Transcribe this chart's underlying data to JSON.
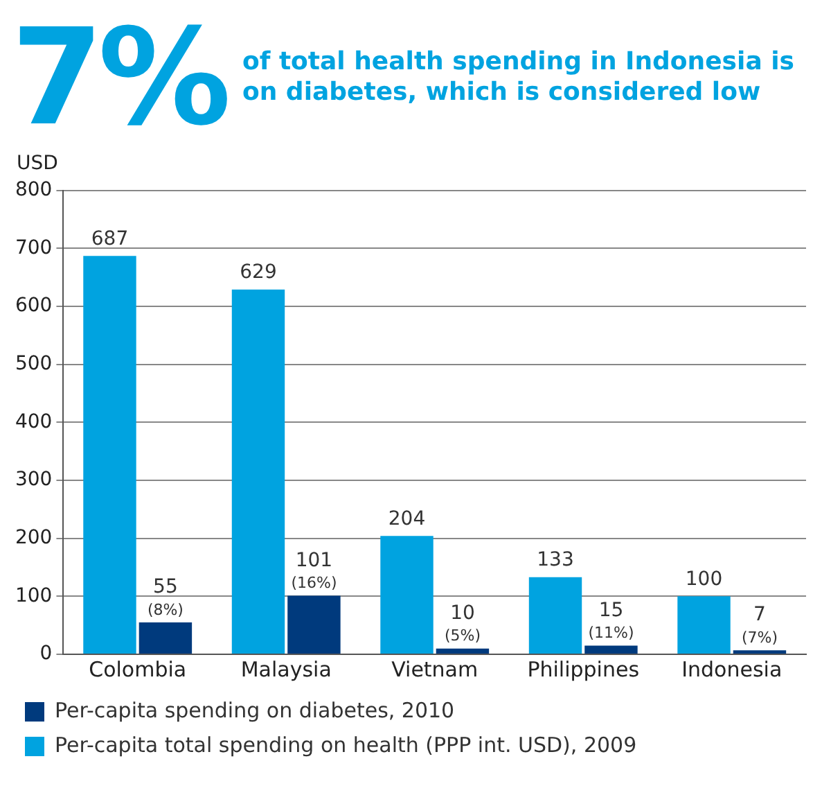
{
  "chart_data": {
    "type": "bar",
    "title": "7%",
    "subtitle": "of total health spending in Indonesia is on diabetes, which is considered low",
    "ylabel": "USD",
    "categories": [
      "Colombia",
      "Malaysia",
      "Vietnam",
      "Philippines",
      "Indonesia"
    ],
    "series": [
      {
        "name": "Per-capita total spending on health (PPP int. USD), 2009",
        "color": "#00a3e0",
        "values": [
          687,
          629,
          204,
          133,
          100
        ],
        "value_labels": [
          "687",
          "629",
          "204",
          "133",
          "100"
        ]
      },
      {
        "name": "Per-capita spending on diabetes, 2010",
        "color": "#003a7d",
        "values": [
          55,
          101,
          10,
          15,
          7
        ],
        "value_labels": [
          "55\n(8%)",
          "101\n(16%)",
          "10\n(5%)",
          "15\n(11%)",
          "7\n(7%)"
        ]
      }
    ],
    "ylim": [
      0,
      800
    ],
    "yticks": [
      0,
      100,
      200,
      300,
      400,
      500,
      600,
      700,
      800
    ],
    "grid": "y",
    "legend": "bottom"
  }
}
